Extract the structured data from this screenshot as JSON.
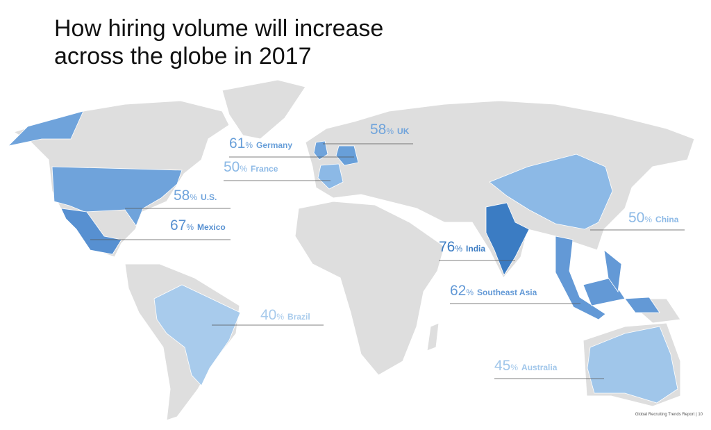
{
  "title": [
    "How hiring volume will increase",
    "across the globe in 2017"
  ],
  "unit": "%",
  "regions": [
    {
      "name": "UK",
      "value": 58,
      "color": "#6fa3db"
    },
    {
      "name": "Germany",
      "value": 61,
      "color": "#689fd9"
    },
    {
      "name": "France",
      "value": 50,
      "color": "#8cb9e6"
    },
    {
      "name": "U.S.",
      "value": 58,
      "color": "#6fa3db"
    },
    {
      "name": "Mexico",
      "value": 67,
      "color": "#5790d1"
    },
    {
      "name": "China",
      "value": 50,
      "color": "#8cb9e6"
    },
    {
      "name": "India",
      "value": 76,
      "color": "#3b7cc3"
    },
    {
      "name": "Southeast Asia",
      "value": 62,
      "color": "#6399d6"
    },
    {
      "name": "Brazil",
      "value": 40,
      "color": "#a8cbec"
    },
    {
      "name": "Australia",
      "value": 45,
      "color": "#a0c6ea"
    }
  ],
  "footer": "Global Recruiting Trends Report  |  10"
}
